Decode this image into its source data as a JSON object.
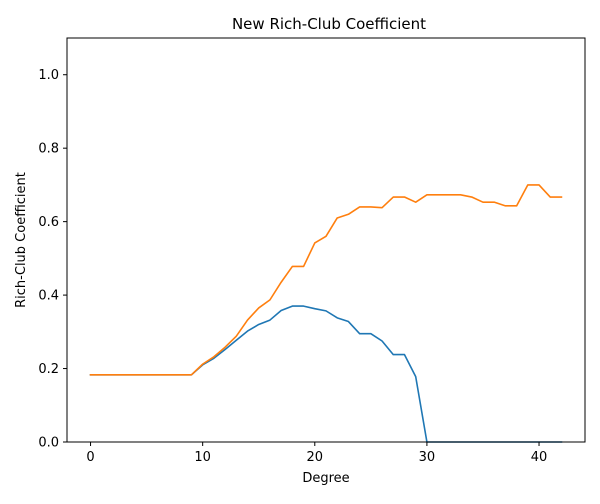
{
  "chart_data": {
    "type": "line",
    "title": "New Rich-Club Coefficient",
    "xlabel": "Degree",
    "ylabel": "Rich-Club Coefficient",
    "xlim": [
      -2.1,
      44.1
    ],
    "ylim": [
      0.0,
      1.1
    ],
    "xticks": [
      0,
      10,
      20,
      30,
      40
    ],
    "yticks": [
      0.0,
      0.2,
      0.4,
      0.6,
      0.8,
      1.0
    ],
    "xtick_labels": [
      "0",
      "10",
      "20",
      "30",
      "40"
    ],
    "ytick_labels": [
      "0.0",
      "0.2",
      "0.4",
      "0.6",
      "0.8",
      "1.0"
    ],
    "grid": false,
    "legend": null,
    "x": [
      0,
      1,
      2,
      3,
      4,
      5,
      6,
      7,
      8,
      9,
      10,
      11,
      12,
      13,
      14,
      15,
      16,
      17,
      18,
      19,
      20,
      21,
      22,
      23,
      24,
      25,
      26,
      27,
      28,
      29,
      30,
      31,
      32,
      33,
      34,
      35,
      36,
      37,
      38,
      39,
      40,
      41,
      42
    ],
    "series": [
      {
        "name": "series-1",
        "color": "#1f77b4",
        "values": [
          0.183,
          0.183,
          0.183,
          0.183,
          0.183,
          0.183,
          0.183,
          0.183,
          0.183,
          0.183,
          0.21,
          0.228,
          0.252,
          0.277,
          0.302,
          0.32,
          0.332,
          0.358,
          0.37,
          0.37,
          0.363,
          0.357,
          0.338,
          0.328,
          0.295,
          0.295,
          0.275,
          0.238,
          0.238,
          0.178,
          0.0,
          0.0,
          0.0,
          0.0,
          0.0,
          0.0,
          0.0,
          0.0,
          0.0,
          0.0,
          0.0,
          0.0,
          0.0
        ]
      },
      {
        "name": "series-2",
        "color": "#ff7f0e",
        "values": [
          0.183,
          0.183,
          0.183,
          0.183,
          0.183,
          0.183,
          0.183,
          0.183,
          0.183,
          0.183,
          0.212,
          0.232,
          0.258,
          0.288,
          0.332,
          0.365,
          0.387,
          0.435,
          0.478,
          0.478,
          0.542,
          0.56,
          0.61,
          0.62,
          0.64,
          0.64,
          0.638,
          0.667,
          0.667,
          0.653,
          0.673,
          0.673,
          0.673,
          0.673,
          0.667,
          0.653,
          0.653,
          0.643,
          0.643,
          0.7,
          0.7,
          0.667,
          0.667
        ]
      }
    ]
  }
}
